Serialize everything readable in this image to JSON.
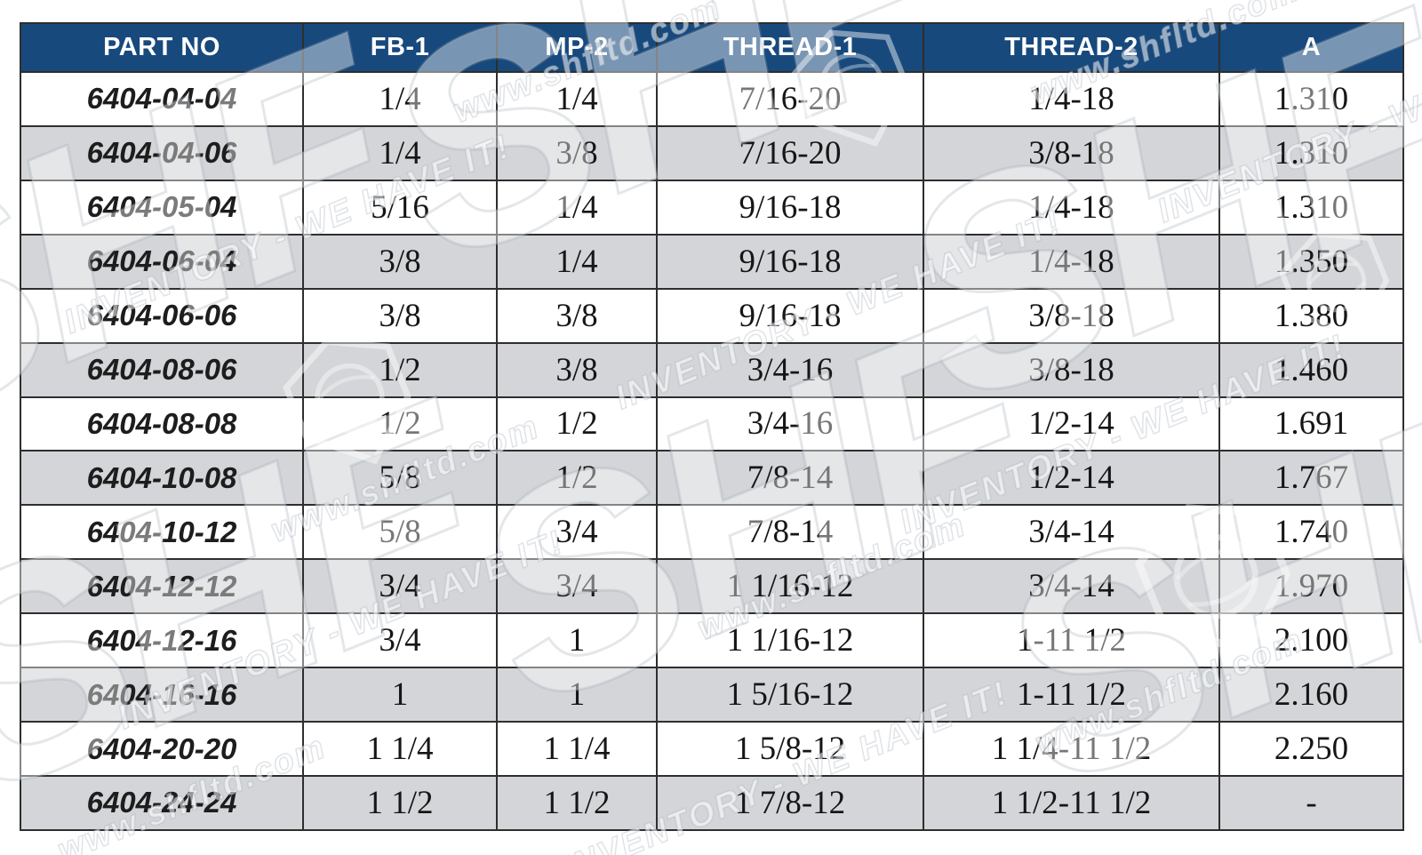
{
  "table": {
    "columns": [
      "PART NO",
      "FB-1",
      "MP-2",
      "THREAD-1",
      "THREAD-2",
      "A"
    ],
    "rows": [
      [
        "6404-04-04",
        "1/4",
        "1/4",
        "7/16-20",
        "1/4-18",
        "1.310"
      ],
      [
        "6404-04-06",
        "1/4",
        "3/8",
        "7/16-20",
        "3/8-18",
        "1.310"
      ],
      [
        "6404-05-04",
        "5/16",
        "1/4",
        "9/16-18",
        "1/4-18",
        "1.310"
      ],
      [
        "6404-06-04",
        "3/8",
        "1/4",
        "9/16-18",
        "1/4-18",
        "1.350"
      ],
      [
        "6404-06-06",
        "3/8",
        "3/8",
        "9/16-18",
        "3/8-18",
        "1.380"
      ],
      [
        "6404-08-06",
        "1/2",
        "3/8",
        "3/4-16",
        "3/8-18",
        "1.460"
      ],
      [
        "6404-08-08",
        "1/2",
        "1/2",
        "3/4-16",
        "1/2-14",
        "1.691"
      ],
      [
        "6404-10-08",
        "5/8",
        "1/2",
        "7/8-14",
        "1/2-14",
        "1.767"
      ],
      [
        "6404-10-12",
        "5/8",
        "3/4",
        "7/8-14",
        "3/4-14",
        "1.740"
      ],
      [
        "6404-12-12",
        "3/4",
        "3/4",
        "1 1/16-12",
        "3/4-14",
        "1.970"
      ],
      [
        "6404-12-16",
        "3/4",
        "1",
        "1 1/16-12",
        "1-11 1/2",
        "2.100"
      ],
      [
        "6404-16-16",
        "1",
        "1",
        "1 5/16-12",
        "1-11 1/2",
        "2.160"
      ],
      [
        "6404-20-20",
        "1 1/4",
        "1 1/4",
        "1 5/8-12",
        "1 1/4-11 1/2",
        "2.250"
      ],
      [
        "6404-24-24",
        "1 1/2",
        "1 1/2",
        "1 7/8-12",
        "1 1/2-11 1/2",
        "-"
      ]
    ]
  },
  "watermark": {
    "brand": "SHF",
    "url": "www.shfltd.com",
    "tagline": "INVENTORY - WE HAVE IT!"
  },
  "colors": {
    "header_bg": "#17497D",
    "header_text": "#FFFFFF",
    "row_bg": "#FFFFFF",
    "row_alt_bg": "#D3D5D8",
    "border": "#2E2E2E",
    "cell_text": "#161616"
  }
}
